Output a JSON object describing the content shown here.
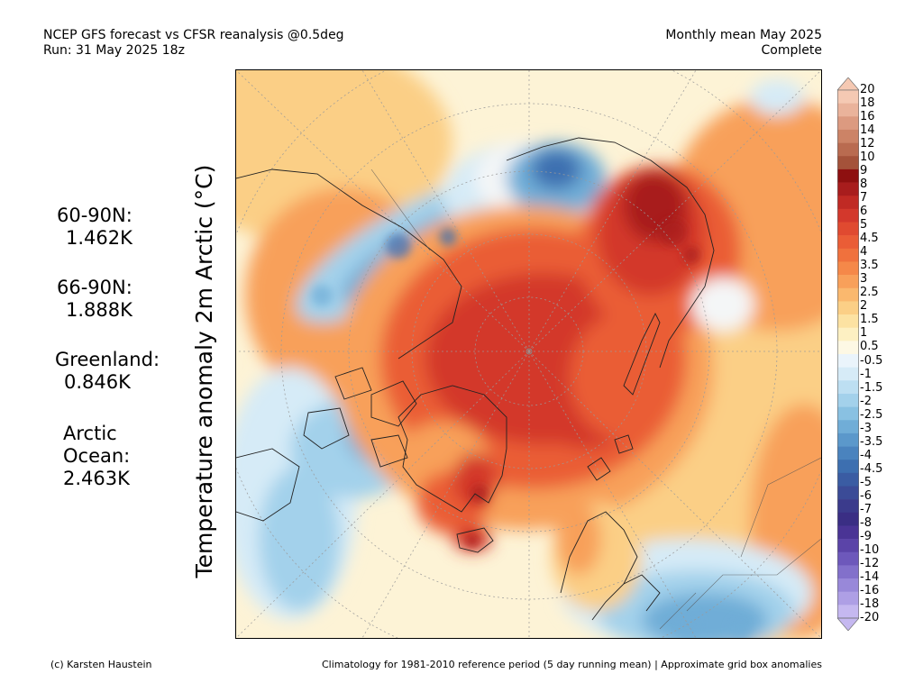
{
  "header": {
    "left_line1": "NCEP GFS forecast vs CFSR reanalysis @0.5deg",
    "left_line2": "Run: 31 May 2025 18z",
    "right_line1": "Monthly mean May 2025",
    "right_line2": "Complete"
  },
  "y_axis_label": "Temperature anomaly 2m Arctic (°C)",
  "stats": [
    {
      "label": "60-90N:",
      "value": "1.462K"
    },
    {
      "label": "66-90N:",
      "value": "1.888K"
    },
    {
      "label": "Greenland:",
      "value": "0.846K"
    },
    {
      "label_line1": "Arctic",
      "label_line2": "Ocean:",
      "value": "2.463K"
    }
  ],
  "colorbar": {
    "labels": [
      "20",
      "18",
      "16",
      "14",
      "12",
      "10",
      "9",
      "8",
      "7",
      "6",
      "5",
      "4.5",
      "4",
      "3.5",
      "3",
      "2.5",
      "2",
      "1.5",
      "1",
      "0.5",
      "-0.5",
      "-1",
      "-1.5",
      "-2",
      "-2.5",
      "-3",
      "-3.5",
      "-4",
      "-4.5",
      "-5",
      "-6",
      "-7",
      "-8",
      "-9",
      "-10",
      "-12",
      "-14",
      "-16",
      "-18",
      "-20"
    ],
    "colors": [
      "#f5c9b3",
      "#eab39b",
      "#dc9a80",
      "#cc8366",
      "#b96b50",
      "#a4523a",
      "#8e1010",
      "#a81d1d",
      "#c02a24",
      "#d3382c",
      "#e04a30",
      "#ea5d36",
      "#f0713d",
      "#f58849",
      "#f8a05a",
      "#fab86e",
      "#fbcf86",
      "#fce2a2",
      "#fdf0c2",
      "#fdf8e4",
      "#eaf4fb",
      "#d6ebf7",
      "#bddff2",
      "#a3d1eb",
      "#89c1e2",
      "#70add7",
      "#5b98cb",
      "#4a83be",
      "#3d6fb0",
      "#3a5ca3",
      "#3b4b97",
      "#3b3b8c",
      "#3a2e84",
      "#4a3495",
      "#5b44a8",
      "#6d58bb",
      "#8270cb",
      "#9888d9",
      "#ae9fe5",
      "#c5b8f0"
    ]
  },
  "footer": {
    "left": "(c) Karsten Haustein",
    "right": "Climatology for 1981-2010 reference period (5 day running mean) | Approximate grid box anomalies"
  },
  "map": {
    "palette": {
      "ocean_pale": "#fdf3d6",
      "light_orange": "#fbcf86",
      "orange": "#f8a05a",
      "orange_red": "#ea5d36",
      "red": "#d3382c",
      "dark_red": "#a81d1d",
      "pale_blue": "#d6ebf7",
      "light_blue": "#a3d1eb",
      "blue": "#70add7",
      "dark_blue": "#3d6fb0",
      "near_white": "#f4f6f7",
      "coast": "#222222"
    }
  }
}
